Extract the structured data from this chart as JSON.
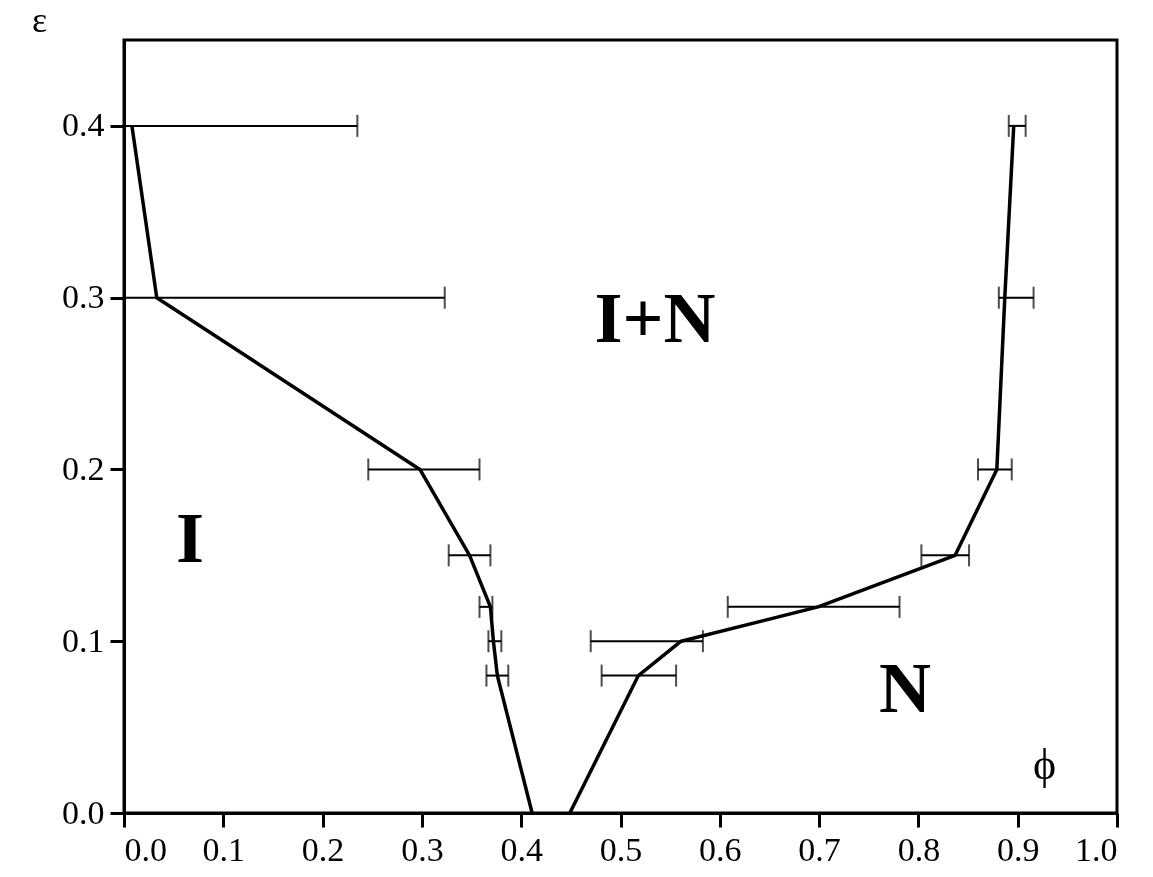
{
  "chart_data": {
    "type": "line",
    "xlabel": "ϕ",
    "ylabel": "ε",
    "xlim": [
      0,
      1.0
    ],
    "ylim": [
      0,
      0.45
    ],
    "xticks": [
      {
        "value": 0,
        "label": "0.0"
      },
      0.1,
      0.2,
      0.3,
      0.4,
      0.5,
      0.6,
      0.7,
      0.8,
      0.9,
      {
        "value": 1,
        "label": "1.0"
      }
    ],
    "yticks": [
      {
        "value": 0,
        "label": "0.0"
      },
      0.1,
      0.2,
      0.3,
      0.4
    ],
    "marker": "none",
    "line_style": "solid",
    "series": [
      {
        "color": "#000000",
        "x": [
          0.008,
          0.033,
          0.298,
          0.348,
          0.369,
          0.372,
          0.376,
          0.411
        ],
        "values": [
          0.4,
          0.3,
          0.2,
          0.15,
          0.12,
          0.1,
          0.08,
          0.0
        ],
        "xerrors": [
          [
            0.0,
            0.235
          ],
          [
            0.0,
            0.323
          ],
          [
            0.246,
            0.358
          ],
          [
            0.327,
            0.369
          ],
          [
            0.358,
            0.371
          ],
          [
            0.367,
            0.38
          ],
          [
            0.365,
            0.387
          ],
          null
        ]
      },
      {
        "color": "#000000",
        "x": [
          0.449,
          0.518,
          0.561,
          0.699,
          0.837,
          0.879,
          0.887,
          0.896
        ],
        "values": [
          0.0,
          0.08,
          0.1,
          0.12,
          0.15,
          0.2,
          0.3,
          0.4
        ],
        "xerrors": [
          null,
          [
            0.481,
            0.556
          ],
          [
            0.47,
            0.583
          ],
          [
            0.608,
            0.781
          ],
          [
            0.803,
            0.851
          ],
          [
            0.86,
            0.894
          ],
          [
            0.881,
            0.916
          ],
          [
            0.891,
            0.908
          ]
        ]
      }
    ],
    "annotations": [
      "I",
      "I+N",
      "N"
    ]
  }
}
